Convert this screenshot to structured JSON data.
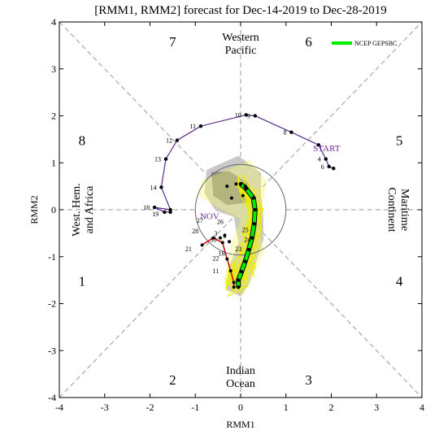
{
  "chart_data": {
    "type": "scatter",
    "title": "[RMM1, RMM2] forecast for Dec-14-2019 to Dec-28-2019",
    "xlabel": "RMM1",
    "ylabel": "RMM2",
    "xlim": [
      -4,
      4
    ],
    "ylim": [
      -4,
      4
    ],
    "xticks": [
      "-4",
      "-3",
      "-2",
      "-1",
      "0",
      "1",
      "2",
      "3",
      "4"
    ],
    "yticks": [
      "-4",
      "-3",
      "-2",
      "-1",
      "0",
      "1",
      "2",
      "3",
      "4"
    ],
    "phases": [
      {
        "label": "1",
        "x": -3.5,
        "y": -1.5
      },
      {
        "label": "2",
        "x": -1.5,
        "y": -3.6
      },
      {
        "label": "3",
        "x": 1.5,
        "y": -3.6
      },
      {
        "label": "4",
        "x": 3.5,
        "y": -1.5
      },
      {
        "label": "5",
        "x": 3.5,
        "y": 1.5
      },
      {
        "label": "6",
        "x": 1.5,
        "y": 3.6
      },
      {
        "label": "7",
        "x": -1.5,
        "y": 3.6
      },
      {
        "label": "8",
        "x": -3.5,
        "y": 1.5
      }
    ],
    "region_labels": [
      {
        "lines": [
          "Western",
          "Pacific"
        ],
        "x": 0,
        "y": 3.55,
        "rotate": 0
      },
      {
        "lines": [
          "Indian",
          "Ocean"
        ],
        "x": 0,
        "y": -3.55,
        "rotate": 0
      },
      {
        "lines": [
          "West. Hem.",
          "and Africa"
        ],
        "x": -3.5,
        "y": 0,
        "rotate": -90
      },
      {
        "lines": [
          "Maritime",
          "Continent"
        ],
        "x": 3.5,
        "y": 0,
        "rotate": 90
      }
    ],
    "annotations": [
      {
        "text": "START",
        "x": 1.6,
        "y": 1.25,
        "color": "#6a2a9a"
      },
      {
        "text": "NOV",
        "x": -0.9,
        "y": -0.2,
        "color": "#6a2a9a"
      }
    ],
    "legend": {
      "label": "NCEP GEPSBC",
      "color": "#00ee00",
      "position": "top-right"
    },
    "observed_series": {
      "name": "observed",
      "color": "#5a2a8a",
      "points": [
        {
          "label": "",
          "x": 2.05,
          "y": 0.88
        },
        {
          "label": "6",
          "x": 1.95,
          "y": 0.92
        },
        {
          "label": "4",
          "x": 1.88,
          "y": 1.08
        },
        {
          "label": "",
          "x": 1.72,
          "y": 1.38
        },
        {
          "label": "8",
          "x": 1.12,
          "y": 1.65
        },
        {
          "label": "9",
          "x": 0.32,
          "y": 2.0
        },
        {
          "label": "10",
          "x": 0.12,
          "y": 2.02
        },
        {
          "label": "11",
          "x": -0.88,
          "y": 1.78
        },
        {
          "label": "12",
          "x": -1.4,
          "y": 1.48
        },
        {
          "label": "13",
          "x": -1.65,
          "y": 1.08
        },
        {
          "label": "14",
          "x": -1.75,
          "y": 0.48
        },
        {
          "label": "",
          "x": -1.55,
          "y": 0.0
        },
        {
          "label": "18",
          "x": -1.9,
          "y": 0.05
        },
        {
          "label": "",
          "x": -1.68,
          "y": -0.05
        },
        {
          "label": "",
          "x": -1.55,
          "y": -0.05
        }
      ]
    },
    "forecast_mean": {
      "name": "NCEP GEPSBC",
      "color": "#00ee00",
      "points": [
        {
          "x": 0.0,
          "y": 0.55
        },
        {
          "x": 0.12,
          "y": 0.45
        },
        {
          "x": 0.28,
          "y": 0.25
        },
        {
          "x": 0.32,
          "y": 0.0
        },
        {
          "x": 0.3,
          "y": -0.3
        },
        {
          "x": 0.25,
          "y": -0.6
        },
        {
          "x": 0.18,
          "y": -0.85
        },
        {
          "x": 0.1,
          "y": -1.1
        },
        {
          "x": 0.02,
          "y": -1.32
        },
        {
          "x": -0.05,
          "y": -1.5
        },
        {
          "x": -0.05,
          "y": -1.65
        }
      ]
    },
    "red_series": {
      "name": "",
      "color": "#cc0000",
      "points": [
        {
          "label": "29",
          "x": -0.85,
          "y": -0.75
        },
        {
          "label": "",
          "x": -0.6,
          "y": -0.6
        },
        {
          "label": "",
          "x": -0.4,
          "y": -0.7
        },
        {
          "label": "",
          "x": -0.3,
          "y": -1.05
        },
        {
          "label": "",
          "x": -0.22,
          "y": -1.3
        },
        {
          "label": "",
          "x": -0.15,
          "y": -1.55
        },
        {
          "label": "",
          "x": -0.15,
          "y": -1.65
        }
      ]
    },
    "day_labels": [
      {
        "text": "27",
        "x": -0.9,
        "y": -0.28
      },
      {
        "text": "26",
        "x": -0.45,
        "y": -0.3
      },
      {
        "text": "28",
        "x": -1.0,
        "y": -0.5
      },
      {
        "text": "30",
        "x": -0.6,
        "y": -0.68
      },
      {
        "text": "21",
        "x": -1.15,
        "y": -0.88
      },
      {
        "text": "22",
        "x": -0.55,
        "y": -1.08
      },
      {
        "text": "23",
        "x": -0.05,
        "y": -0.88
      },
      {
        "text": "24",
        "x": 0.15,
        "y": -0.68
      },
      {
        "text": "25",
        "x": 0.1,
        "y": -0.48
      },
      {
        "text": "16",
        "x": -0.42,
        "y": -0.98
      },
      {
        "text": "11",
        "x": -0.55,
        "y": -1.35
      },
      {
        "text": "19",
        "x": -1.88,
        "y": -0.14
      },
      {
        "text": "3",
        "x": -0.55,
        "y": -0.55
      },
      {
        "text": "2",
        "x": -0.35,
        "y": -0.6
      }
    ],
    "grid": false
  }
}
